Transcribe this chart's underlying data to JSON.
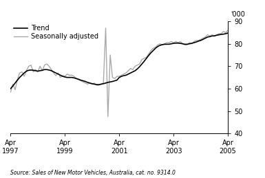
{
  "ylabel_right": "'000",
  "ylim": [
    40,
    90
  ],
  "yticks": [
    40,
    50,
    60,
    70,
    80,
    90
  ],
  "source_text": "Source: Sales of New Motor Vehicles, Australia, cat. no. 9314.0",
  "trend_color": "#000000",
  "seasonal_color": "#aaaaaa",
  "trend_lw": 1.2,
  "seasonal_lw": 1.0,
  "legend_labels": [
    "Trend",
    "Seasonally adjusted"
  ],
  "background_color": "#ffffff",
  "xtick_labels": [
    "Apr\n1997",
    "Apr\n1999",
    "Apr\n2001",
    "Apr\n2003",
    "Apr\n2005"
  ],
  "xtick_positions": [
    0,
    24,
    48,
    72,
    96
  ],
  "xlim": [
    0,
    96
  ],
  "trend_data": [
    60.0,
    61.2,
    62.5,
    63.8,
    65.0,
    66.0,
    67.0,
    67.8,
    68.2,
    68.3,
    68.2,
    68.0,
    67.8,
    68.0,
    68.2,
    68.5,
    68.5,
    68.3,
    68.0,
    67.5,
    67.0,
    66.5,
    66.0,
    65.5,
    65.2,
    65.0,
    65.0,
    65.0,
    64.8,
    64.5,
    64.2,
    63.8,
    63.5,
    63.2,
    62.8,
    62.5,
    62.2,
    62.0,
    61.8,
    61.8,
    62.0,
    62.2,
    62.5,
    62.8,
    63.0,
    63.2,
    63.5,
    63.8,
    65.0,
    65.5,
    65.8,
    66.0,
    66.5,
    67.0,
    67.5,
    68.0,
    68.8,
    69.8,
    71.0,
    72.2,
    73.5,
    74.8,
    76.0,
    77.0,
    78.0,
    78.8,
    79.3,
    79.6,
    79.8,
    79.8,
    79.8,
    80.0,
    80.2,
    80.3,
    80.3,
    80.2,
    80.0,
    79.8,
    79.8,
    80.0,
    80.2,
    80.5,
    80.8,
    81.2,
    81.5,
    82.0,
    82.5,
    83.0,
    83.2,
    83.5,
    83.5,
    83.8,
    84.0,
    84.2,
    84.3,
    84.5,
    84.8
  ],
  "seasonal_data": [
    58.5,
    62.0,
    59.5,
    64.0,
    67.0,
    67.5,
    65.5,
    68.0,
    70.0,
    70.5,
    67.5,
    68.5,
    67.5,
    70.0,
    68.0,
    70.5,
    71.0,
    70.0,
    68.5,
    67.0,
    65.8,
    67.0,
    65.0,
    65.8,
    65.5,
    66.5,
    66.0,
    66.0,
    65.5,
    64.5,
    64.0,
    63.5,
    63.0,
    62.5,
    62.0,
    62.5,
    62.0,
    62.5,
    61.5,
    61.5,
    62.0,
    62.5,
    87.0,
    47.5,
    75.0,
    65.0,
    64.5,
    65.5,
    65.5,
    66.0,
    66.5,
    67.0,
    68.0,
    69.0,
    68.5,
    70.0,
    70.5,
    71.0,
    73.0,
    73.5,
    74.0,
    75.5,
    77.0,
    78.0,
    78.5,
    79.5,
    80.0,
    79.5,
    80.0,
    80.5,
    80.5,
    81.0,
    80.5,
    81.0,
    80.5,
    81.0,
    80.0,
    79.5,
    79.5,
    80.5,
    80.0,
    81.0,
    81.5,
    81.5,
    82.0,
    82.5,
    83.0,
    84.0,
    83.5,
    84.0,
    83.5,
    84.0,
    84.5,
    84.5,
    85.5,
    85.0,
    86.0
  ]
}
